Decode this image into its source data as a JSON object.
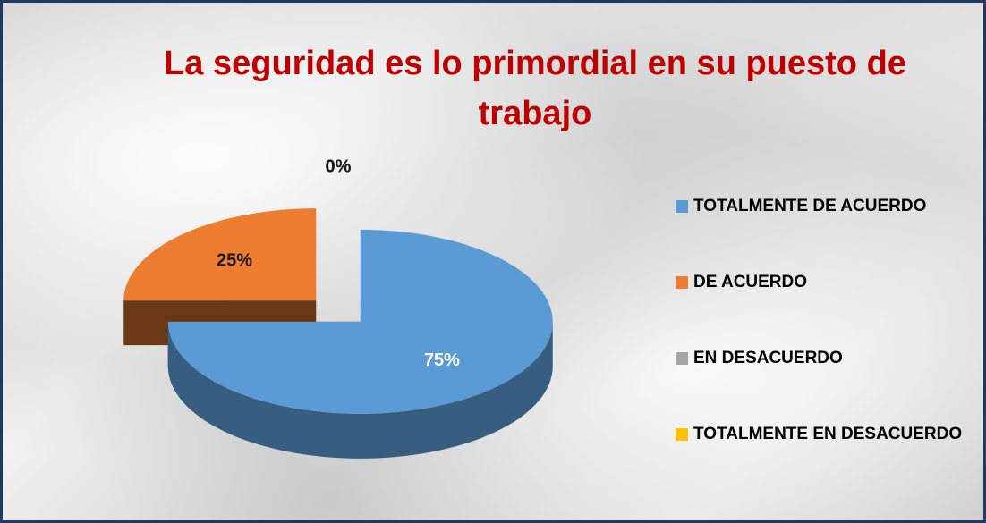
{
  "chart_data": {
    "type": "pie3d",
    "title": "La seguridad es lo primordial en su puesto de trabajo",
    "categories": [
      "TOTALMENTE DE ACUERDO",
      "DE ACUERDO",
      "EN DESACUERDO",
      "TOTALMENTE EN DESACUERDO"
    ],
    "series": [
      {
        "name": "La seguridad es lo primordial en su puesto de trabajo",
        "values": [
          75,
          25,
          0,
          0
        ],
        "value_labels": [
          "75%",
          "25%",
          "0%",
          "0%"
        ],
        "colors": [
          "#5b9bd5",
          "#ed7d31",
          "#a5a5a5",
          "#ffc000"
        ]
      }
    ],
    "legend": "right"
  }
}
